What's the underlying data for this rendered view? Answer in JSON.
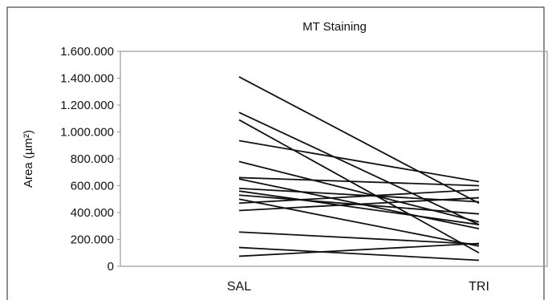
{
  "chart_data": {
    "type": "line",
    "title": "MT Staining",
    "ylabel": "Area (µm²)",
    "xlabel": "",
    "categories": [
      "SAL",
      "TRI"
    ],
    "ylim": [
      0,
      1600000
    ],
    "yticks": [
      0,
      200000,
      400000,
      600000,
      800000,
      1000000,
      1200000,
      1400000,
      1600000
    ],
    "ytick_labels": [
      "0",
      "200.000",
      "400.000",
      "600.000",
      "800.000",
      "1.000.000",
      "1.200.000",
      "1.400.000",
      "1.600.000"
    ],
    "grid": false,
    "legend": "none",
    "line_color": "#111111",
    "series": [
      {
        "values": [
          1410000,
          470000
        ]
      },
      {
        "values": [
          1145000,
          310000
        ]
      },
      {
        "values": [
          1090000,
          100000
        ]
      },
      {
        "values": [
          935000,
          630000
        ]
      },
      {
        "values": [
          780000,
          330000
        ]
      },
      {
        "values": [
          660000,
          600000
        ]
      },
      {
        "values": [
          650000,
          280000
        ]
      },
      {
        "values": [
          580000,
          480000
        ]
      },
      {
        "values": [
          560000,
          310000
        ]
      },
      {
        "values": [
          530000,
          390000
        ]
      },
      {
        "values": [
          500000,
          150000
        ]
      },
      {
        "values": [
          470000,
          570000
        ]
      },
      {
        "values": [
          415000,
          510000
        ]
      },
      {
        "values": [
          255000,
          165000
        ]
      },
      {
        "values": [
          140000,
          45000
        ]
      },
      {
        "values": [
          75000,
          170000
        ]
      }
    ]
  }
}
